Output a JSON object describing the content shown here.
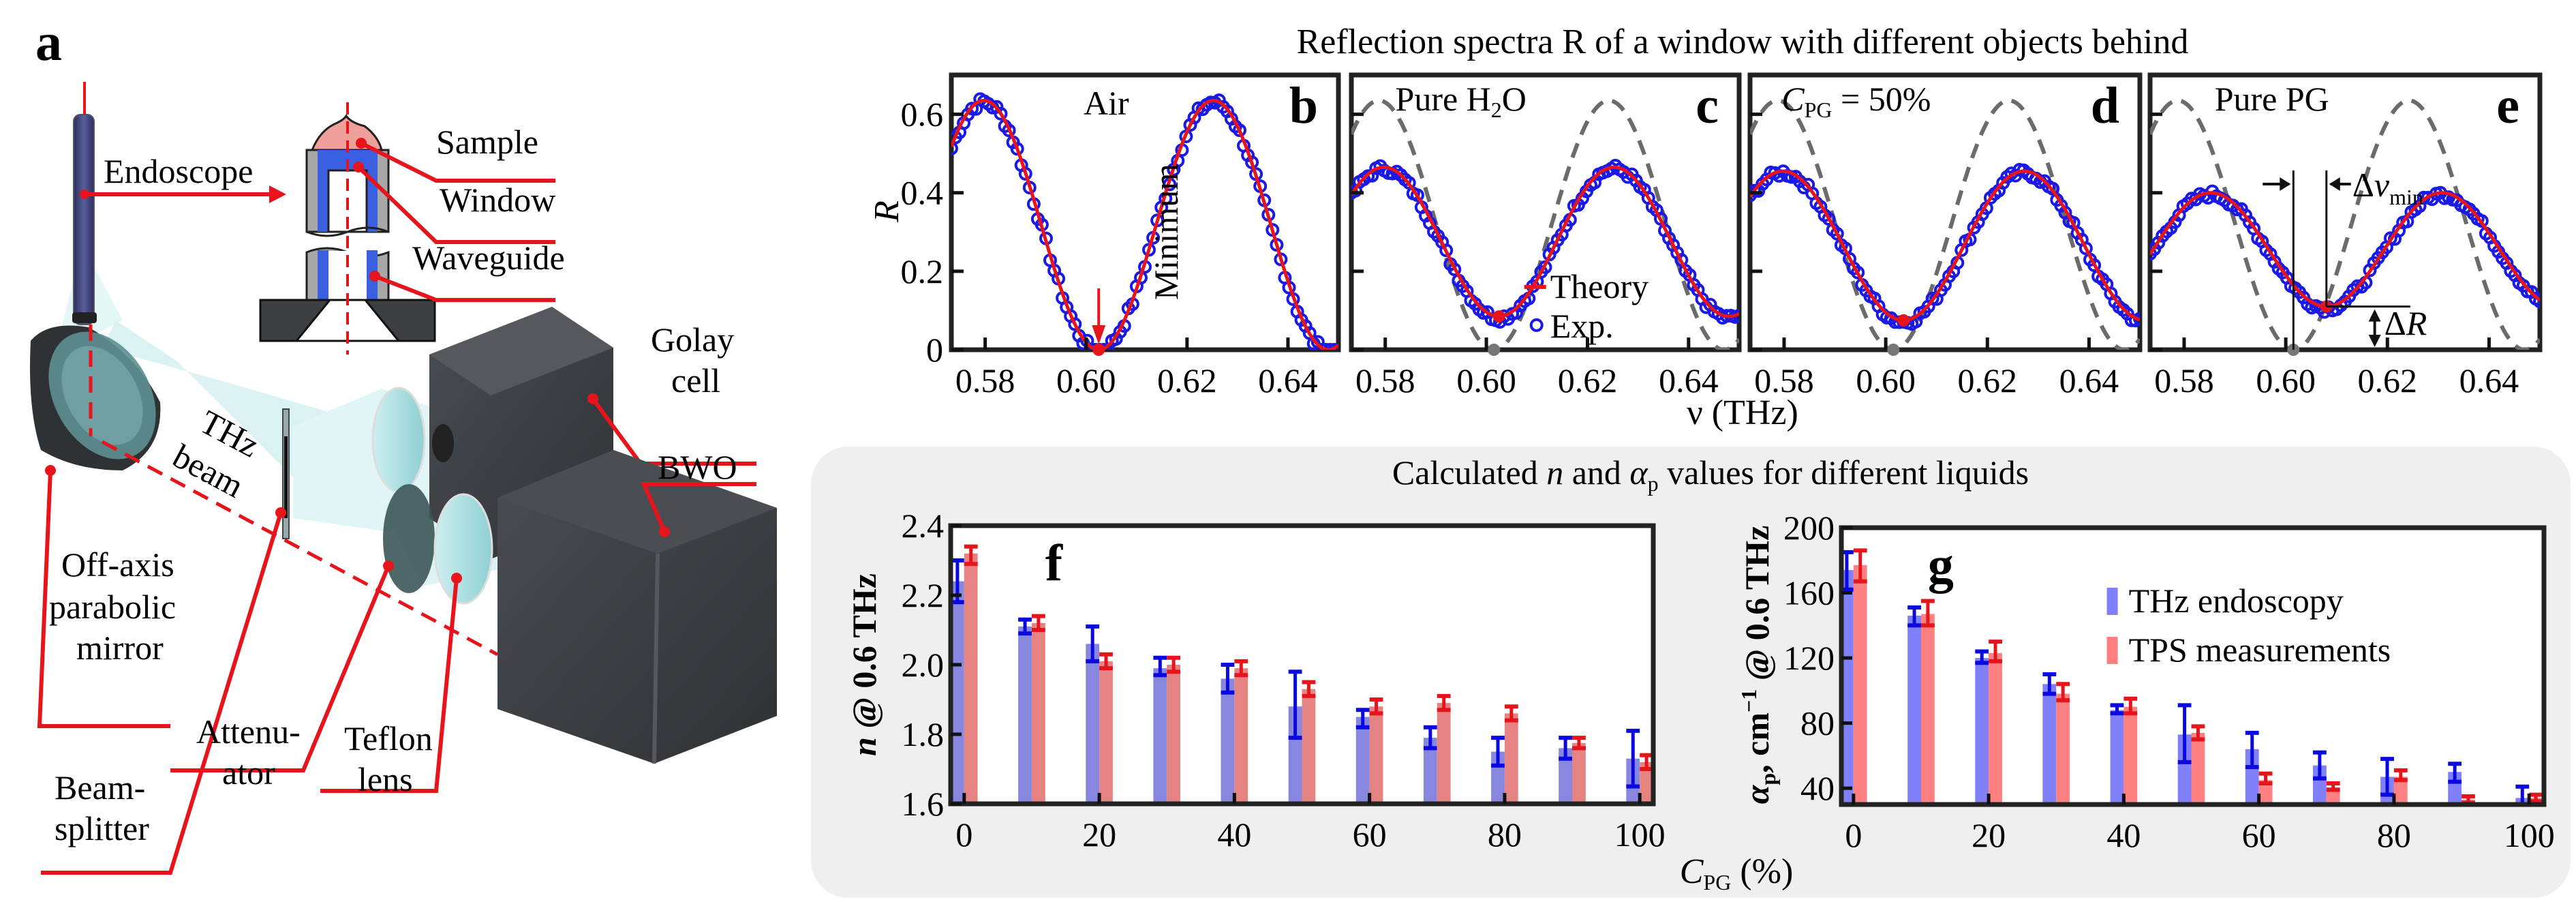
{
  "figure": {
    "panel_a": {
      "letter": "a",
      "labels": {
        "endoscope": "Endoscope",
        "sample": "Sample",
        "window": "Window",
        "waveguide": "Waveguide",
        "golay_1": "Golay",
        "golay_2": "cell",
        "thz_1": "THz",
        "thz_2": "beam",
        "bwo": "BWO",
        "mirror_1": "Off-axis",
        "mirror_2": "parabolic",
        "mirror_3": "mirror",
        "splitter_1": "Beam-",
        "splitter_2": "splitter",
        "attenuator_1": "Attenu-",
        "attenuator_2": "ator",
        "lens_1": "Teflon",
        "lens_2": "lens"
      },
      "colors": {
        "leader": "#e8141c",
        "window_blue": "#3a5fe0",
        "sample_pink": "#f0a09a",
        "body_dark": "#3d4043",
        "beam_cyan": "#bfe8ea"
      }
    },
    "spectra_title": "Reflection spectra R of a window with different objects behind",
    "params_title_pre": "Calculated ",
    "params_title_n": "n",
    "params_title_mid": " and ",
    "params_title_alpha": "α",
    "params_title_sub": "p",
    "params_title_post": " values for different liquids",
    "shared_xlabel_spectra": "ν (THz)",
    "shared_xlabel_bars_main": "C",
    "shared_xlabel_bars_sub": "PG",
    "shared_xlabel_bars_unit": " (%)"
  },
  "chart_data": [
    {
      "id": "b",
      "type": "line",
      "panel_letter": "b",
      "annotation": "Air",
      "annotation_2": "Minimum",
      "xlabel": "ν (THz)",
      "ylabel": "R",
      "xlim": [
        0.5733,
        0.65
      ],
      "ylim": [
        0,
        0.7
      ],
      "xticks": [
        0.58,
        0.6,
        0.62,
        0.64
      ],
      "xtick_labels": [
        "0.58",
        "0.60",
        "0.62",
        "0.64"
      ],
      "yticks": [
        0,
        0.2,
        0.4,
        0.6
      ],
      "ytick_labels": [
        "0",
        "0.2",
        "0.4",
        "0.6"
      ],
      "theory": {
        "name": "Theory",
        "color": "#e8141c",
        "baseline": 0.0,
        "peak": 0.635,
        "min_x": 0.6025,
        "period": 0.0455
      },
      "experiment": {
        "name": "Exp.",
        "color": "#1a1ae6",
        "noise": 0.012
      },
      "reference_dashed": null,
      "minimum_marker": {
        "x": 0.6025,
        "y": 0.0
      }
    },
    {
      "id": "c",
      "type": "line",
      "panel_letter": "c",
      "annotation": "Pure H",
      "annotation_sub": "2",
      "annotation_post": "O",
      "xlim": [
        0.5733,
        0.65
      ],
      "ylim": [
        0,
        0.7
      ],
      "xticks": [
        0.58,
        0.6,
        0.62,
        0.64
      ],
      "xtick_labels": [
        "0.58",
        "0.60",
        "0.62",
        "0.64"
      ],
      "yticks": [
        0,
        0.2,
        0.4,
        0.6
      ],
      "theory": {
        "name": "Theory",
        "color": "#e8141c",
        "baseline": 0.085,
        "peak": 0.465,
        "min_x": 0.6025,
        "period": 0.0455
      },
      "experiment": {
        "name": "Exp.",
        "color": "#1a1ae6",
        "noise": 0.01
      },
      "reference_dashed": {
        "baseline": 0.0,
        "peak": 0.635,
        "min_x": 0.6015,
        "period": 0.0455,
        "color": "#6b6b6b"
      },
      "legend": [
        {
          "label": "Theory",
          "marker": "line",
          "color": "#e8141c"
        },
        {
          "label": "Exp.",
          "marker": "circle",
          "color": "#1a1ae6"
        }
      ],
      "minimum_marker": {
        "x": 0.6025,
        "y": 0.085
      }
    },
    {
      "id": "d",
      "type": "line",
      "panel_letter": "d",
      "annotation": "C",
      "annotation_sub": "PG",
      "annotation_post": " = 50%",
      "xlim": [
        0.5733,
        0.65
      ],
      "ylim": [
        0,
        0.7
      ],
      "xticks": [
        0.58,
        0.6,
        0.62,
        0.64
      ],
      "xtick_labels": [
        "0.58",
        "0.60",
        "0.62",
        "0.64"
      ],
      "yticks": [
        0,
        0.2,
        0.4,
        0.6
      ],
      "theory": {
        "name": "Theory",
        "color": "#e8141c",
        "baseline": 0.075,
        "peak": 0.455,
        "min_x": 0.6035,
        "period": 0.0475
      },
      "experiment": {
        "name": "Exp.",
        "color": "#1a1ae6",
        "noise": 0.01
      },
      "reference_dashed": {
        "baseline": 0.0,
        "peak": 0.635,
        "min_x": 0.6015,
        "period": 0.0455,
        "color": "#6b6b6b"
      },
      "minimum_marker": {
        "x": 0.6035,
        "y": 0.075
      }
    },
    {
      "id": "e",
      "type": "line",
      "panel_letter": "e",
      "annotation": "Pure PG",
      "annotation_dnu": "Δν",
      "annotation_dnu_sub": "min",
      "annotation_dr": "ΔR",
      "xlim": [
        0.5733,
        0.65
      ],
      "ylim": [
        0,
        0.7
      ],
      "xticks": [
        0.58,
        0.6,
        0.62,
        0.64
      ],
      "xtick_labels": [
        "0.58",
        "0.60",
        "0.62",
        "0.64"
      ],
      "yticks": [
        0,
        0.2,
        0.4,
        0.6
      ],
      "theory": {
        "name": "Theory",
        "color": "#e8141c",
        "baseline": 0.11,
        "peak": 0.4,
        "min_x": 0.608,
        "period": 0.0455
      },
      "experiment": {
        "name": "Exp.",
        "color": "#1a1ae6",
        "noise": 0.01
      },
      "reference_dashed": {
        "baseline": 0.0,
        "peak": 0.635,
        "min_x": 0.6015,
        "period": 0.0455,
        "color": "#6b6b6b"
      },
      "minimum_marker": {
        "x": 0.608,
        "y": 0.11
      },
      "delta_nu_min": 0.0065,
      "delta_R": 0.11
    },
    {
      "id": "f",
      "type": "bar",
      "panel_letter": "f",
      "title": "",
      "xlabel": "C_PG (%)",
      "ylabel_main": "n",
      "ylabel_rest": " @ 0.6 THz",
      "xlim": [
        -2,
        102
      ],
      "ylim": [
        1.6,
        2.4
      ],
      "xticks": [
        0,
        20,
        40,
        60,
        80,
        100
      ],
      "xtick_labels": [
        "0",
        "20",
        "40",
        "60",
        "80",
        "100"
      ],
      "yticks": [
        1.6,
        1.8,
        2.0,
        2.2,
        2.4
      ],
      "ytick_labels": [
        "1.6",
        "1.8",
        "2.0",
        "2.2",
        "2.4"
      ],
      "categories": [
        0,
        10,
        20,
        30,
        40,
        50,
        60,
        70,
        80,
        90,
        100
      ],
      "series": [
        {
          "name": "THz endoscopy",
          "bar_color": "#8787e0",
          "err_color": "#0a0ae0",
          "values": [
            2.24,
            2.11,
            2.06,
            1.99,
            1.96,
            1.88,
            1.85,
            1.79,
            1.75,
            1.76,
            1.73
          ],
          "err_low": [
            2.18,
            2.09,
            2.01,
            1.97,
            1.92,
            1.79,
            1.82,
            1.76,
            1.71,
            1.73,
            1.65
          ],
          "err_high": [
            2.3,
            2.13,
            2.11,
            2.02,
            2.0,
            1.98,
            1.87,
            1.82,
            1.79,
            1.79,
            1.81
          ]
        },
        {
          "name": "TPS measurements",
          "bar_color": "#e58282",
          "err_color": "#e8141c",
          "values": [
            2.32,
            2.12,
            2.01,
            2.0,
            1.99,
            1.93,
            1.88,
            1.89,
            1.86,
            1.775,
            1.72
          ],
          "err_low": [
            2.29,
            2.1,
            1.99,
            1.98,
            1.97,
            1.91,
            1.86,
            1.87,
            1.84,
            1.76,
            1.7
          ],
          "err_high": [
            2.34,
            2.14,
            2.03,
            2.02,
            2.01,
            1.95,
            1.9,
            1.91,
            1.88,
            1.79,
            1.74
          ]
        }
      ]
    },
    {
      "id": "g",
      "type": "bar",
      "panel_letter": "g",
      "xlabel": "C_PG (%)",
      "ylabel_alpha": "α",
      "ylabel_sub": "p",
      "ylabel_rest": ", cm",
      "ylabel_sup": "−1",
      "ylabel_tail": " @ 0.6 THz",
      "xlim": [
        -1.8,
        102.2
      ],
      "ylim": [
        30,
        200
      ],
      "xticks": [
        0,
        20,
        40,
        60,
        80,
        100
      ],
      "xtick_labels": [
        "0",
        "20",
        "40",
        "60",
        "80",
        "100"
      ],
      "yticks": [
        40,
        80,
        120,
        160,
        200
      ],
      "ytick_labels": [
        "40",
        "80",
        "120",
        "160",
        "200"
      ],
      "legend_position": "top-right",
      "legend": [
        "THz endoscopy",
        "TPS measurements"
      ],
      "categories": [
        0,
        10,
        20,
        30,
        40,
        50,
        60,
        70,
        80,
        90,
        100
      ],
      "series": [
        {
          "name": "THz endoscopy",
          "bar_color": "#8080f8",
          "err_color": "#0a0ae0",
          "values": [
            174,
            146,
            120,
            104,
            88,
            73,
            64,
            54,
            47,
            50,
            34
          ],
          "err_low": [
            162,
            140,
            117,
            98,
            86,
            56,
            53,
            46,
            36,
            44,
            30
          ],
          "err_high": [
            185,
            151,
            124,
            110,
            91,
            91,
            74,
            62,
            58,
            55,
            41
          ]
        },
        {
          "name": "TPS measurements",
          "bar_color": "#ff8080",
          "err_color": "#e8141c",
          "values": [
            177,
            147,
            123,
            98,
            90,
            74,
            45,
            40.5,
            47,
            33,
            34
          ],
          "err_low": [
            167,
            140,
            118,
            94,
            86,
            70,
            43,
            39,
            45,
            31,
            32
          ],
          "err_high": [
            186,
            155,
            130,
            104,
            95,
            78,
            49,
            43,
            51,
            35,
            36
          ]
        }
      ]
    }
  ]
}
